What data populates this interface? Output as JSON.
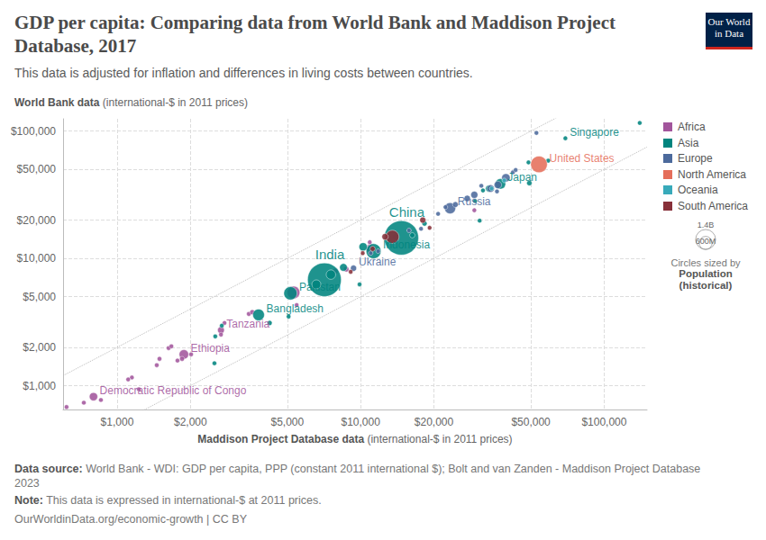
{
  "chart_data": {
    "type": "scatter",
    "title": "GDP per capita: Comparing data from World Bank and Maddison Project Database, 2017",
    "subtitle": "This data is adjusted for inflation and differences in living costs between countries.",
    "y_label": {
      "bold": "World Bank data",
      "rest": "(international-$ in 2011 prices)"
    },
    "x_label": {
      "bold": "Maddison Project Database data",
      "rest": "(international-$ in 2011 prices)"
    },
    "logo": "Our World in Data",
    "source": {
      "label": "Data source:",
      "text": "World Bank - WDI: GDP per capita, PPP (constant 2011 international $); Bolt and van Zanden - Maddison Project Database 2023"
    },
    "note": {
      "label": "Note:",
      "text": "This data is expressed in international-$ at 2011 prices."
    },
    "url": "OurWorldinData.org/economic-growth | CC BY",
    "log": true,
    "grid": true,
    "legend": "right",
    "xlim": [
      600,
      150000
    ],
    "ylim": [
      650,
      125000
    ],
    "xticks": [
      {
        "value": 1000,
        "label": "$1,000"
      },
      {
        "value": 2000,
        "label": "$2,000"
      },
      {
        "value": 5000,
        "label": "$5,000"
      },
      {
        "value": 10000,
        "label": "$10,000"
      },
      {
        "value": 20000,
        "label": "$20,000"
      },
      {
        "value": 50000,
        "label": "$50,000"
      },
      {
        "value": 100000,
        "label": "$100,000"
      }
    ],
    "yticks": [
      {
        "value": 1000,
        "label": "$1,000"
      },
      {
        "value": 2000,
        "label": "$2,000"
      },
      {
        "value": 5000,
        "label": "$5,000"
      },
      {
        "value": 10000,
        "label": "$10,000"
      },
      {
        "value": 20000,
        "label": "$20,000"
      },
      {
        "value": 50000,
        "label": "$50,000"
      },
      {
        "value": 100000,
        "label": "$100,000"
      }
    ],
    "reference_lines": {
      "slopes": [
        2,
        0.5
      ],
      "line_style": "dotted"
    },
    "size_legend": {
      "title": "Circles sized by",
      "subtitle": "Population (historical)",
      "values": [
        {
          "value": 1400000000,
          "label": "1.4B"
        },
        {
          "value": 600000000,
          "label": "600M"
        }
      ]
    },
    "series": [
      {
        "name": "Africa",
        "color": "#a2559c",
        "x": [
          800,
          1880,
          2670,
          5300,
          11000,
          620,
          858,
          730,
          1150,
          1110,
          1627,
          1670,
          1493,
          1455,
          1848,
          2013,
          1770,
          2670,
          3474,
          3590,
          5460,
          7880,
          8730,
          10900,
          13960,
          29300,
          2760,
          1228
        ],
        "values": [
          820,
          1760,
          2730,
          5400,
          12000,
          680,
          772,
          735,
          1160,
          1120,
          1976,
          2040,
          1626,
          1450,
          1626,
          1763,
          1575,
          2520,
          3662,
          3780,
          4300,
          7960,
          8220,
          13400,
          14770,
          23900,
          3110,
          937
        ],
        "population": [
          81000000,
          106000000,
          55000000,
          191000000,
          97000000,
          5000000,
          20000000,
          11000000,
          12000000,
          9000000,
          15000000,
          8000000,
          25000000,
          16000000,
          28000000,
          20000000,
          24000000,
          10000000,
          25000000,
          30000000,
          10000000,
          40000000,
          35000000,
          6000000,
          57000000,
          1300000,
          6000000,
          5000000
        ],
        "labels": [
          "Democratic Republic of Congo",
          "Ethiopia",
          "Tanzania",
          null,
          null,
          null,
          null,
          null,
          null,
          null,
          null,
          null,
          null,
          null,
          null,
          null,
          null,
          null,
          null,
          null,
          null,
          null,
          null,
          null,
          null,
          null,
          null,
          null
        ]
      },
      {
        "name": "Asia",
        "color": "#00847e",
        "x": [
          14700,
          7100,
          11300,
          5150,
          3810,
          37500,
          69300,
          140000,
          48900,
          58900,
          49300,
          33600,
          31800,
          29500,
          30800,
          18300,
          16300,
          10240,
          8500,
          9900,
          4230,
          5060,
          2690,
          2530,
          2510,
          7550,
          6580
        ],
        "values": [
          14500,
          6800,
          11400,
          5320,
          3600,
          38500,
          87900,
          116000,
          56800,
          58600,
          39100,
          35400,
          34200,
          28200,
          19800,
          18800,
          15200,
          12330,
          8500,
          6250,
          3110,
          3490,
          2960,
          2440,
          1500,
          7460,
          6250
        ],
        "population": [
          1390000000,
          1339000000,
          264000000,
          207000000,
          159000000,
          127000000,
          5700000,
          2700000,
          4000000,
          9500000,
          33000000,
          51000000,
          23000000,
          2000000,
          4500000,
          31000000,
          33000000,
          81000000,
          69000000,
          5000000,
          30000000,
          20000000,
          16000000,
          8000000,
          3000000,
          105000000,
          95000000
        ],
        "labels": [
          "China",
          "India",
          "Indonesia",
          "Pakistan",
          "Bangladesh",
          "Japan",
          "Singapore",
          null,
          null,
          null,
          null,
          null,
          null,
          null,
          null,
          null,
          null,
          null,
          null,
          null,
          null,
          null,
          null,
          null,
          null,
          null,
          null
        ]
      },
      {
        "name": "Europe",
        "color": "#4c6a9c",
        "x": [
          52700,
          39500,
          34200,
          36600,
          29300,
          27400,
          23300,
          24500,
          22300,
          20800,
          42200,
          43300,
          15800,
          17700,
          9350,
          11000,
          11800,
          36300,
          31300
        ],
        "values": [
          96800,
          43000,
          35400,
          37800,
          31600,
          29600,
          24800,
          26500,
          25300,
          22400,
          47500,
          49500,
          16600,
          17100,
          8370,
          11000,
          11400,
          33600,
          37200
        ],
        "population": [
          600000,
          82000000,
          65000000,
          66000000,
          60000000,
          47000000,
          145000000,
          38000000,
          10000000,
          7000000,
          17000000,
          5000000,
          7000000,
          3000000,
          45000000,
          10000000,
          7000000,
          11000000,
          9000000
        ],
        "labels": [
          null,
          null,
          null,
          null,
          null,
          null,
          "Russia",
          null,
          null,
          null,
          null,
          null,
          null,
          null,
          "Ukraine",
          null,
          null,
          null,
          null
        ]
      },
      {
        "name": "North America",
        "color": "#e56e5a",
        "x": [
          54000
        ],
        "values": [
          54800
        ],
        "population": [
          325000000
        ],
        "labels": [
          "United States"
        ]
      },
      {
        "name": "Oceania",
        "color": "#38aaba",
        "x": [
          38900,
          34500
        ],
        "values": [
          41000,
          35400
        ],
        "population": [
          25000000,
          5000000
        ],
        "labels": [
          null,
          null
        ]
      },
      {
        "name": "South America",
        "color": "#883039",
        "x": [
          13500,
          18000,
          19200,
          12600,
          11200,
          9100,
          10200
        ],
        "values": [
          14770,
          20000,
          17400,
          14800,
          11900,
          7850,
          11000
        ],
        "population": [
          209000000,
          44000000,
          18000000,
          49000000,
          32000000,
          11000000,
          17000000
        ],
        "labels": [
          null,
          null,
          null,
          null,
          null,
          null,
          null
        ]
      }
    ]
  }
}
